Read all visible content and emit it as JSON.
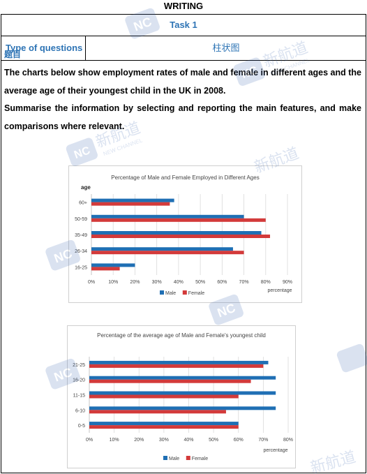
{
  "header": {
    "title": "WRITING"
  },
  "task_row": {
    "label": "Task 1"
  },
  "type_row": {
    "label": "Type of questions",
    "value": "柱状图"
  },
  "question": {
    "label": "题目",
    "paragraph1": "The charts below show employment rates of male and female in different ages and the average age of their youngest child in the UK in 2008.",
    "paragraph2": "Summarise the information by selecting and reporting the main features, and make comparisons where relevant."
  },
  "watermark": {
    "brand_cn": "新航道",
    "brand_en": "NEW CHANNEL",
    "logo": "NC"
  },
  "chart_data": [
    {
      "type": "bar",
      "orientation": "horizontal",
      "title": "Percentage of Male and Female Employed in Different Ages",
      "ylabel": "age",
      "xlabel": "percentage",
      "categories": [
        "16-25",
        "26-34",
        "35-49",
        "50-59",
        "60+"
      ],
      "series": [
        {
          "name": "Male",
          "color": "#1f6fb4",
          "values": [
            20,
            65,
            78,
            70,
            38
          ]
        },
        {
          "name": "Female",
          "color": "#d33a3a",
          "values": [
            13,
            70,
            82,
            80,
            36
          ]
        }
      ],
      "xlim": [
        0,
        90
      ],
      "xticks": [
        "0%",
        "10%",
        "20%",
        "30%",
        "40%",
        "50%",
        "60%",
        "70%",
        "80%",
        "90%"
      ],
      "legend": "bottom",
      "grid": true
    },
    {
      "type": "bar",
      "orientation": "horizontal",
      "title": "Percentage of the average age of Male and Female's youngest child",
      "ylabel": "",
      "xlabel": "percentage",
      "categories": [
        "0-5",
        "6-10",
        "11-15",
        "16-20",
        "21-25"
      ],
      "series": [
        {
          "name": "Male",
          "color": "#1f6fb4",
          "values": [
            60,
            75,
            75,
            75,
            72
          ]
        },
        {
          "name": "Female",
          "color": "#d33a3a",
          "values": [
            60,
            55,
            60,
            65,
            70
          ]
        }
      ],
      "xlim": [
        0,
        80
      ],
      "xticks": [
        "0%",
        "10%",
        "20%",
        "30%",
        "40%",
        "50%",
        "60%",
        "70%",
        "80%"
      ],
      "legend": "bottom",
      "grid": true
    }
  ]
}
